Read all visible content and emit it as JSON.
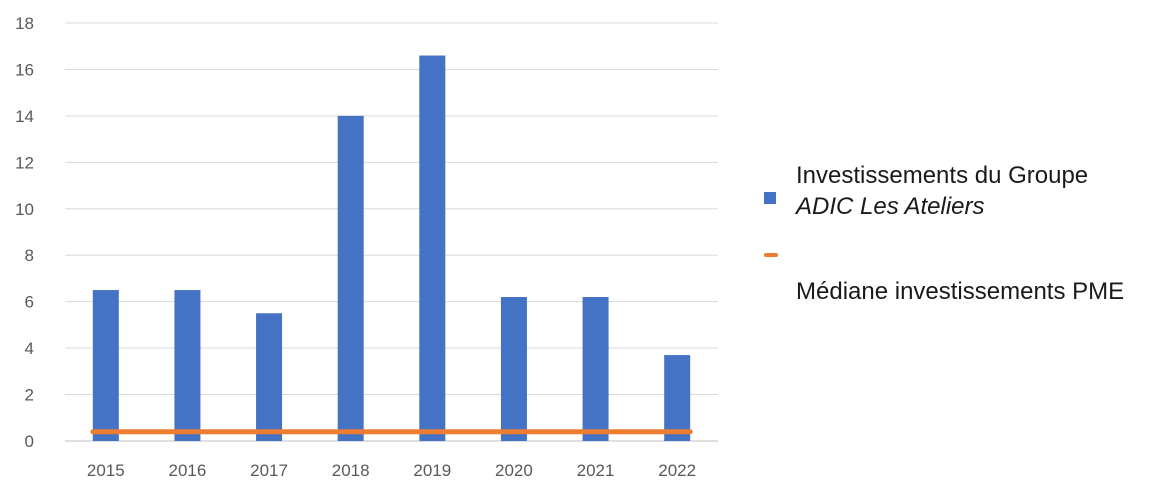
{
  "chart_data": {
    "type": "bar",
    "categories": [
      "2015",
      "2016",
      "2017",
      "2018",
      "2019",
      "2020",
      "2021",
      "2022"
    ],
    "series": [
      {
        "name": "Investissements du Groupe ADIC Les Ateliers",
        "type": "bar",
        "color": "#4472C4",
        "values": [
          6.5,
          6.5,
          5.5,
          14,
          16.6,
          6.2,
          6.2,
          3.7
        ]
      },
      {
        "name": "Médiane investissements PME",
        "type": "line",
        "color": "#ED7D31",
        "values": [
          0.4,
          0.4,
          0.4,
          0.4,
          0.4,
          0.4,
          0.4,
          0.4
        ]
      }
    ],
    "ylim": [
      0,
      18
    ],
    "yticks": [
      0,
      2,
      4,
      6,
      8,
      10,
      12,
      14,
      16,
      18
    ],
    "grid": true,
    "legend_position": "right"
  },
  "legend": {
    "bar_line1": "Investissements du Groupe",
    "bar_line2": "ADIC Les Ateliers",
    "line_label": "Médiane investissements PME"
  }
}
